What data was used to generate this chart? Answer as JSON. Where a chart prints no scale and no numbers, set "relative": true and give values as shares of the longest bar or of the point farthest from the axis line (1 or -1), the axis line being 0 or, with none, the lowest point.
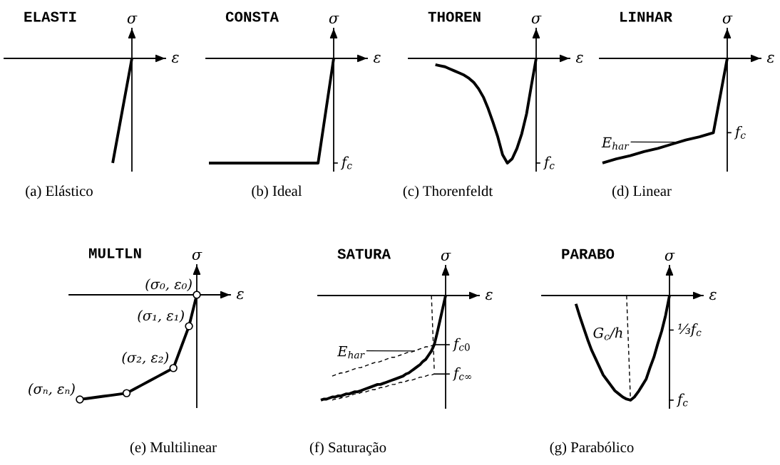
{
  "chart_data": [
    {
      "type": "line",
      "relative": true,
      "tick_labels": false,
      "title": "ELASTI",
      "xlabel": "ε",
      "ylabel": "σ",
      "categories": [
        null,
        null,
        null,
        null,
        null,
        null,
        null,
        null,
        null,
        null,
        null,
        null,
        null,
        null
      ],
      "series": [
        {
          "color": "#000000",
          "values": [
            null,
            null,
            null,
            null,
            null,
            null,
            null,
            null,
            null,
            null,
            null,
            -1,
            -0.5,
            0
          ]
        }
      ],
      "annotations": [
        "(a) Elástico"
      ]
    },
    {
      "type": "line",
      "relative": true,
      "tick_labels": false,
      "title": "CONSTA",
      "xlabel": "ε",
      "ylabel": "σ",
      "categories": [
        null,
        null,
        null,
        null,
        null,
        null,
        null,
        null,
        null,
        null,
        null,
        null,
        null,
        null,
        null,
        null,
        null
      ],
      "series": [
        {
          "color": "#000000",
          "values": [
            -1,
            -1,
            -1,
            -1,
            -1,
            -1,
            -1,
            -1,
            -1,
            -1,
            -1,
            -1,
            -1,
            -1,
            -1,
            -0.5,
            0
          ]
        }
      ],
      "ref_lines": [
        {
          "axis": "y",
          "value": -1,
          "label": "f$_{c}$"
        }
      ],
      "annotations": [
        "(b) Ideal"
      ]
    },
    {
      "type": "line",
      "relative": true,
      "tick_labels": false,
      "title": "THOREN",
      "xlabel": "ε",
      "ylabel": "σ",
      "categories": [
        null,
        null,
        null,
        null,
        null,
        null,
        null,
        null,
        null,
        null,
        null,
        null,
        null,
        null,
        null,
        null,
        null,
        null,
        null,
        null,
        null,
        null,
        null,
        null,
        null,
        null,
        null
      ],
      "series": [
        {
          "color": "#000000",
          "values": [
            null,
            null,
            null,
            null,
            null,
            -0.06,
            -0.07,
            -0.08,
            -0.1,
            -0.12,
            -0.14,
            -0.16,
            -0.19,
            -0.23,
            -0.29,
            -0.37,
            -0.48,
            -0.61,
            -0.75,
            -0.92,
            -1,
            -0.96,
            -0.86,
            -0.72,
            -0.53,
            -0.26,
            0
          ]
        }
      ],
      "ref_lines": [
        {
          "axis": "y",
          "value": -1,
          "label": "f$_{c}$"
        }
      ],
      "annotations": [
        "(c) Thorenfeldt"
      ]
    },
    {
      "type": "line",
      "relative": true,
      "tick_labels": false,
      "title": "LINHAR",
      "xlabel": "ε",
      "ylabel": "σ",
      "categories": [
        null,
        null,
        null,
        null,
        null,
        null,
        null,
        null,
        null,
        null
      ],
      "series": [
        {
          "color": "#000000",
          "values": [
            -1,
            -0.96,
            -0.93,
            -0.89,
            -0.86,
            -0.82,
            -0.78,
            -0.75,
            -0.71,
            0
          ]
        }
      ],
      "ref_lines": [
        {
          "axis": "y",
          "value": -0.71,
          "label": "f$_{c}$"
        }
      ],
      "annotations": [
        "E$_{har}$",
        "(d) Linear"
      ]
    },
    {
      "type": "line",
      "relative": true,
      "tick_labels": false,
      "title": "MULTLN",
      "xlabel": "ε",
      "ylabel": "σ",
      "categories": [
        null,
        null,
        null,
        null,
        null,
        null,
        null,
        null,
        null,
        null,
        null,
        null,
        null,
        null,
        null,
        null,
        null
      ],
      "series": [
        {
          "color": "#000000",
          "values": [
            null,
            -1,
            -0.99,
            -0.98,
            -0.97,
            -0.96,
            -0.95,
            -0.94,
            -0.9,
            -0.86,
            -0.82,
            -0.78,
            -0.74,
            -0.7,
            -0.5,
            -0.3,
            0
          ]
        }
      ],
      "annotations": [
        "(σ₀, ε₀)",
        "(σ₁, ε₁)",
        "(σ₂, ε₂)",
        "(σₙ, εₙ)",
        "(e) Multilinear"
      ]
    },
    {
      "type": "line",
      "relative": true,
      "tick_labels": false,
      "title": "SATURA",
      "xlabel": "ε",
      "ylabel": "σ",
      "categories": [
        null,
        null,
        null,
        null,
        null,
        null,
        null,
        null,
        null,
        null,
        null,
        null,
        null,
        null,
        null,
        null,
        null,
        null,
        null,
        null,
        null,
        null,
        null,
        null,
        null,
        null,
        null,
        null,
        null,
        null,
        null,
        null,
        null,
        null,
        null,
        null,
        null,
        null,
        null,
        null,
        null,
        null,
        null,
        null,
        null
      ],
      "series": [
        {
          "color": "#000000",
          "values": [
            -1,
            -0.99,
            -0.99,
            -0.98,
            -0.97,
            -0.97,
            -0.96,
            -0.96,
            -0.95,
            -0.94,
            -0.94,
            -0.93,
            -0.92,
            -0.92,
            -0.91,
            -0.9,
            -0.89,
            -0.88,
            -0.87,
            -0.86,
            -0.85,
            -0.85,
            -0.84,
            -0.83,
            -0.82,
            -0.81,
            -0.8,
            -0.79,
            -0.78,
            -0.77,
            -0.75,
            -0.74,
            -0.72,
            -0.7,
            -0.68,
            -0.66,
            -0.63,
            -0.61,
            -0.57,
            -0.53,
            -0.47,
            -0.36,
            -0.24,
            -0.12,
            0
          ]
        },
        {
          "color": "#000000",
          "line_style": "dashed",
          "values": [
            null,
            null,
            null,
            null,
            -0.77,
            -0.76,
            -0.75,
            -0.74,
            -0.74,
            -0.73,
            -0.72,
            -0.71,
            -0.7,
            -0.69,
            -0.69,
            -0.68,
            -0.67,
            -0.66,
            -0.65,
            -0.64,
            -0.64,
            -0.63,
            -0.62,
            -0.61,
            -0.6,
            -0.59,
            -0.59,
            -0.58,
            -0.57,
            -0.56,
            -0.55,
            -0.54,
            -0.54,
            -0.53,
            -0.52,
            -0.51,
            -0.5,
            -0.49,
            -0.49,
            -0.48,
            -0.47,
            null,
            null,
            null,
            null
          ]
        },
        {
          "color": "#000000",
          "line_style": "dashed",
          "values": [
            null,
            null,
            null,
            null,
            -1,
            -0.99,
            -0.99,
            -0.98,
            -0.97,
            -0.97,
            -0.96,
            -0.95,
            -0.94,
            -0.94,
            -0.93,
            -0.92,
            -0.92,
            -0.91,
            -0.9,
            -0.9,
            -0.89,
            -0.88,
            -0.88,
            -0.87,
            -0.86,
            -0.85,
            -0.85,
            -0.84,
            -0.83,
            -0.83,
            -0.82,
            -0.81,
            -0.81,
            -0.8,
            -0.79,
            -0.78,
            -0.78,
            -0.77,
            -0.76,
            -0.76,
            -0.75,
            null,
            null,
            null,
            null
          ]
        },
        {
          "color": "#000000",
          "line_style": "dashed",
          "values": [
            null,
            null,
            null,
            null,
            null,
            null,
            null,
            null,
            null,
            null,
            null,
            null,
            null,
            null,
            null,
            null,
            null,
            null,
            null,
            null,
            null,
            null,
            null,
            null,
            null,
            null,
            null,
            null,
            null,
            null,
            null,
            null,
            null,
            null,
            null,
            null,
            null,
            null,
            null,
            0,
            -0.71,
            null,
            null,
            null,
            null
          ]
        }
      ],
      "ref_lines": [
        {
          "axis": "y",
          "value": -0.47,
          "label": "f$_{c0}$"
        },
        {
          "axis": "y",
          "value": -0.75,
          "label": "f$_{c∞}$"
        }
      ],
      "annotations": [
        "E$_{har}$",
        "(f) Saturação"
      ]
    },
    {
      "type": "line",
      "relative": true,
      "tick_labels": false,
      "title": "PARABO",
      "xlabel": "ε",
      "ylabel": "σ",
      "categories": [
        null,
        null,
        null,
        null,
        null,
        null,
        null,
        null,
        null,
        null,
        null,
        null,
        null,
        null,
        null,
        null,
        null,
        null,
        null,
        null,
        null,
        null,
        null,
        null,
        null,
        null,
        null,
        null,
        null,
        null,
        null,
        null,
        null
      ],
      "series": [
        {
          "color": "#000000",
          "values": [
            null,
            null,
            null,
            null,
            null,
            null,
            null,
            null,
            -0.08,
            -0.2,
            -0.31,
            -0.42,
            -0.52,
            -0.6,
            -0.68,
            -0.76,
            -0.81,
            -0.86,
            -0.91,
            -0.94,
            -0.97,
            -0.99,
            -1,
            -0.97,
            -0.92,
            -0.86,
            -0.8,
            -0.69,
            -0.59,
            -0.46,
            -0.34,
            -0.19,
            0
          ]
        },
        {
          "color": "#000000",
          "line_style": "dashed",
          "values": [
            null,
            null,
            null,
            null,
            null,
            null,
            null,
            null,
            null,
            null,
            null,
            null,
            null,
            null,
            null,
            null,
            null,
            null,
            null,
            null,
            null,
            0,
            -1,
            null,
            null,
            null,
            null,
            null,
            null,
            null,
            null,
            null,
            null
          ]
        }
      ],
      "ref_lines": [
        {
          "axis": "y",
          "value": -0.33,
          "label": "⅓f$_{c}$"
        },
        {
          "axis": "y",
          "value": -1,
          "label": "f$_{c}$"
        }
      ],
      "annotations": [
        "G$_{c}$/h",
        "(g) Parabólico"
      ]
    }
  ]
}
